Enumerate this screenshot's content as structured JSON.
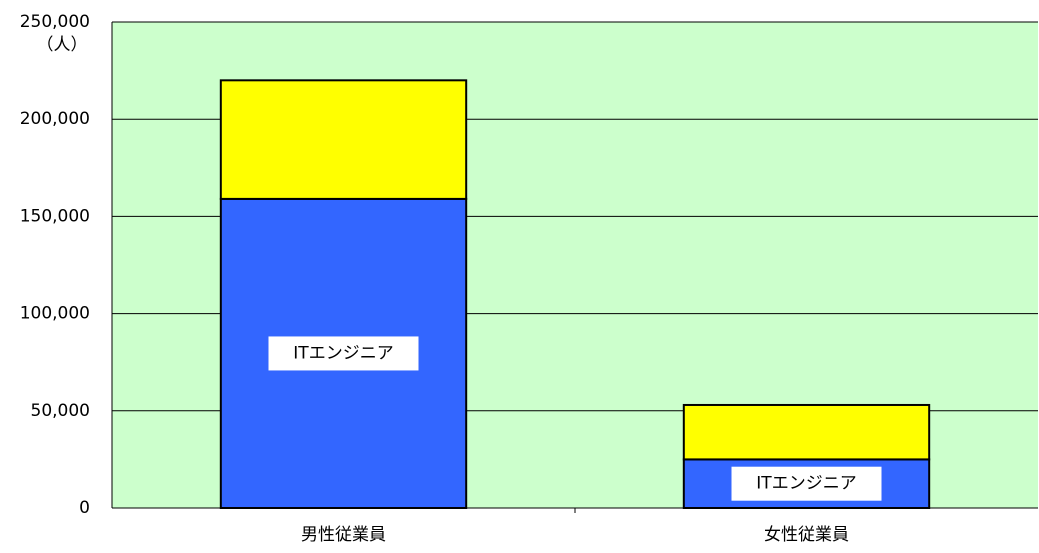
{
  "chart_data": {
    "type": "bar",
    "stacked": true,
    "y_unit_label": "（人）",
    "categories": [
      "男性従業員",
      "女性従業員"
    ],
    "series": [
      {
        "name": "ITエンジニア",
        "color": "#3366ff",
        "values": [
          159000,
          25000
        ]
      },
      {
        "color": "#ffff00",
        "values": [
          61000,
          28000
        ]
      }
    ],
    "ylim": [
      0,
      250000
    ],
    "yticks": [
      0,
      {
        "value": 50000,
        "label": "50,000"
      },
      {
        "value": 100000,
        "label": "100,000"
      },
      {
        "value": 150000,
        "label": "150,000"
      },
      {
        "value": 200000,
        "label": "200,000"
      },
      {
        "value": 250000,
        "label": "250,000"
      }
    ],
    "grid": true,
    "background": "#ccffcc"
  }
}
